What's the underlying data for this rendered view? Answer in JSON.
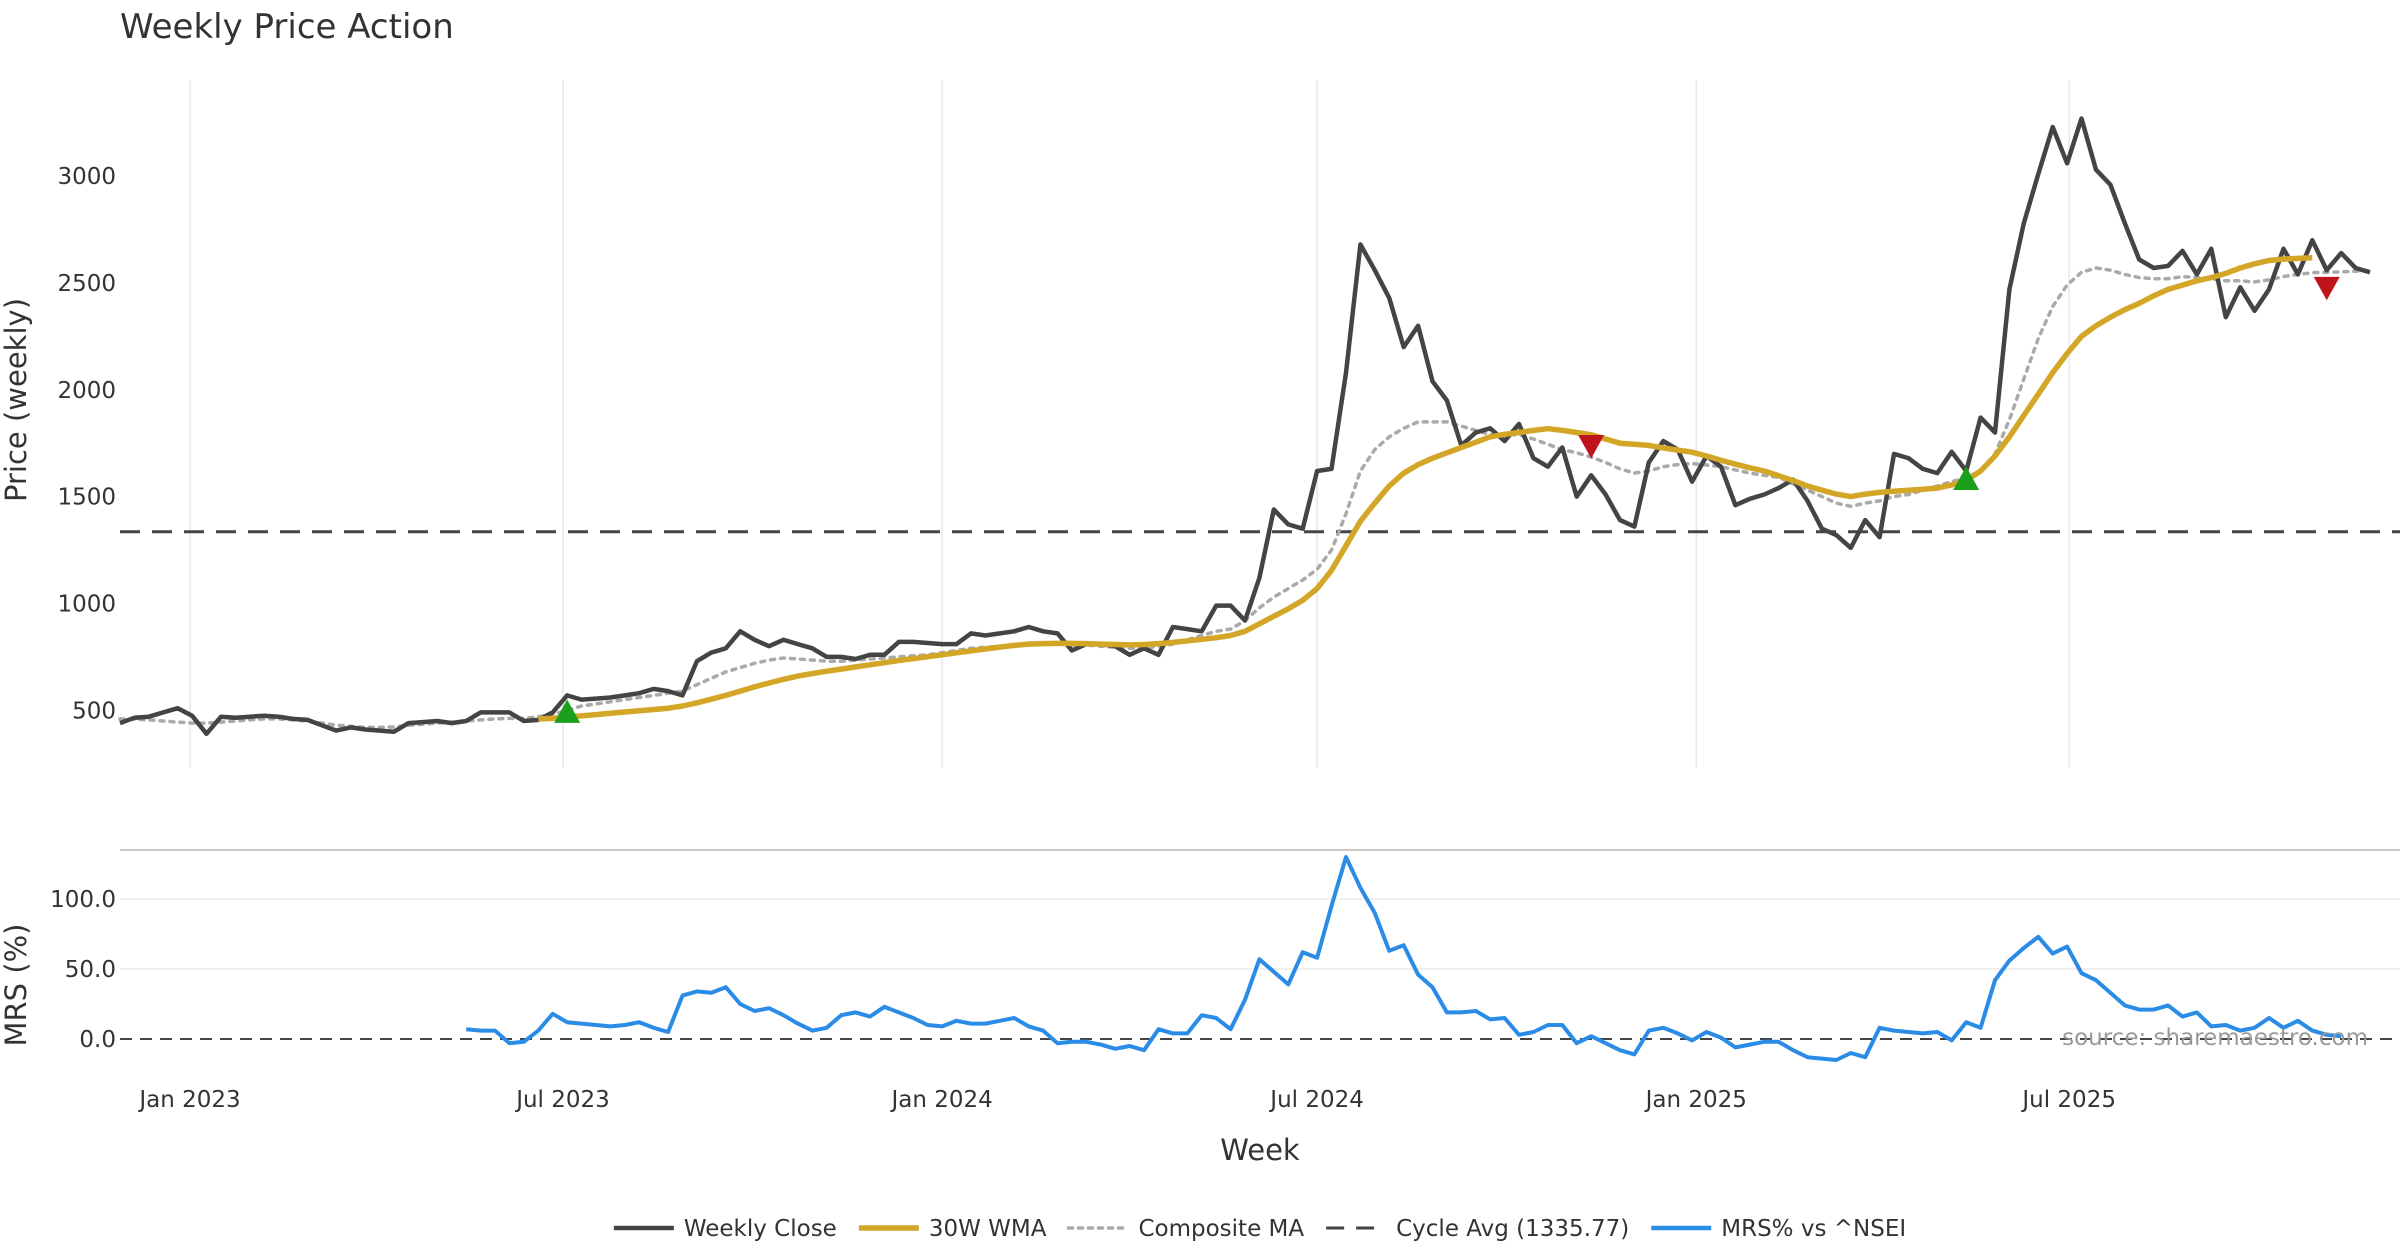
{
  "title": "Weekly Price Action",
  "source": "source: sharemaestro.com",
  "colors": {
    "close": "#444444",
    "wma": "#d4a628",
    "composite": "#aaaaaa",
    "cycle": "#444444",
    "mrs": "#2a8ce6",
    "buy": "#1ca01c",
    "sell": "#c0141c"
  },
  "chart_data": [
    {
      "type": "line",
      "panel": "price",
      "title": "Weekly Price Action",
      "xlabel": "",
      "ylabel": "Price (weekly)",
      "ylim": [
        230,
        3450
      ],
      "yticks": [
        500,
        1000,
        1500,
        2000,
        2500,
        3000
      ],
      "x_start": "2022-11-28",
      "x_step_days": 7,
      "grid": "vertical",
      "series": [
        {
          "name": "Weekly Close",
          "values": [
            440,
            465,
            470,
            490,
            510,
            475,
            390,
            470,
            465,
            470,
            475,
            470,
            460,
            455,
            430,
            405,
            420,
            410,
            405,
            400,
            440,
            445,
            450,
            440,
            450,
            490,
            490,
            490,
            450,
            455,
            490,
            570,
            550,
            555,
            560,
            570,
            580,
            600,
            590,
            570,
            730,
            770,
            790,
            870,
            830,
            800,
            830,
            810,
            790,
            750,
            750,
            740,
            760,
            760,
            820,
            820,
            815,
            810,
            810,
            860,
            850,
            860,
            870,
            890,
            870,
            860,
            780,
            810,
            810,
            800,
            760,
            790,
            760,
            890,
            880,
            870,
            990,
            990,
            920,
            1120,
            1440,
            1370,
            1350,
            1620,
            1630,
            2080,
            2680,
            2560,
            2430,
            2200,
            2300,
            2040,
            1950,
            1740,
            1800,
            1820,
            1760,
            1840,
            1680,
            1640,
            1730,
            1500,
            1600,
            1510,
            1390,
            1360,
            1660,
            1760,
            1720,
            1570,
            1690,
            1640,
            1460,
            1490,
            1510,
            1540,
            1580,
            1480,
            1350,
            1320,
            1260,
            1390,
            1310,
            1700,
            1680,
            1630,
            1610,
            1710,
            1620,
            1870,
            1800,
            2470,
            2780,
            3010,
            3230,
            3060,
            3270,
            3030,
            2960,
            2780,
            2610,
            2570,
            2580,
            2650,
            2540,
            2660,
            2340,
            2480,
            2370,
            2470,
            2660,
            2540,
            2700,
            2560,
            2640,
            2570,
            2550
          ]
        },
        {
          "name": "30W WMA",
          "start_index": 29,
          "values": [
            460,
            462,
            468,
            474,
            480,
            486,
            492,
            498,
            504,
            510,
            520,
            535,
            552,
            570,
            590,
            610,
            628,
            645,
            660,
            672,
            683,
            693,
            703,
            713,
            723,
            733,
            742,
            751,
            760,
            769,
            778,
            787,
            796,
            804,
            810,
            812,
            813,
            813,
            812,
            810,
            808,
            806,
            808,
            812,
            818,
            825,
            832,
            840,
            850,
            870,
            905,
            940,
            975,
            1015,
            1070,
            1155,
            1270,
            1385,
            1470,
            1550,
            1610,
            1650,
            1680,
            1705,
            1730,
            1755,
            1780,
            1792,
            1800,
            1810,
            1818,
            1810,
            1800,
            1790,
            1770,
            1750,
            1745,
            1740,
            1728,
            1718,
            1708,
            1690,
            1670,
            1652,
            1635,
            1620,
            1598,
            1575,
            1550,
            1530,
            1512,
            1500,
            1512,
            1520,
            1525,
            1530,
            1535,
            1540,
            1555,
            1575,
            1620,
            1690,
            1780,
            1880,
            1980,
            2080,
            2170,
            2250,
            2300,
            2340,
            2375,
            2405,
            2440,
            2470,
            2490,
            2510,
            2525,
            2545,
            2570,
            2590,
            2605,
            2612,
            2615,
            2618
          ]
        },
        {
          "name": "Composite MA",
          "values": [
            460,
            458,
            455,
            450,
            445,
            440,
            440,
            445,
            450,
            455,
            460,
            460,
            455,
            450,
            440,
            430,
            425,
            420,
            420,
            422,
            430,
            435,
            440,
            445,
            450,
            455,
            460,
            462,
            462,
            470,
            480,
            500,
            520,
            530,
            540,
            550,
            560,
            570,
            580,
            590,
            620,
            650,
            680,
            700,
            720,
            735,
            745,
            740,
            735,
            730,
            730,
            735,
            740,
            745,
            750,
            755,
            760,
            770,
            780,
            790,
            795,
            800,
            805,
            810,
            812,
            810,
            805,
            805,
            800,
            795,
            790,
            790,
            800,
            810,
            830,
            850,
            870,
            880,
            920,
            980,
            1030,
            1070,
            1110,
            1160,
            1250,
            1420,
            1620,
            1720,
            1780,
            1820,
            1850,
            1850,
            1850,
            1830,
            1810,
            1790,
            1790,
            1790,
            1770,
            1745,
            1720,
            1705,
            1685,
            1660,
            1630,
            1610,
            1620,
            1640,
            1650,
            1655,
            1648,
            1640,
            1625,
            1610,
            1600,
            1590,
            1560,
            1530,
            1500,
            1470,
            1455,
            1470,
            1480,
            1500,
            1510,
            1530,
            1550,
            1570,
            1590,
            1620,
            1700,
            1860,
            2050,
            2240,
            2390,
            2490,
            2550,
            2570,
            2560,
            2540,
            2525,
            2520,
            2520,
            2530,
            2525,
            2520,
            2510,
            2510,
            2505,
            2515,
            2530,
            2540,
            2548,
            2550,
            2552,
            2555,
            2558
          ]
        },
        {
          "name": "Cycle Avg (1335.77)",
          "constant": 1335.77
        }
      ],
      "markers": [
        {
          "type": "buy",
          "index": 31,
          "value": 490
        },
        {
          "type": "sell",
          "index": 102,
          "value": 1740
        },
        {
          "type": "buy",
          "index": 128,
          "value": 1580
        },
        {
          "type": "sell",
          "index": 153,
          "value": 2480
        }
      ]
    },
    {
      "type": "line",
      "panel": "mrs",
      "xlabel": "Week",
      "ylabel": "MRS (%)",
      "ylim": [
        -15,
        135
      ],
      "yticks": [
        "0.0",
        "50.0",
        "100.0"
      ],
      "ytick_values": [
        0,
        50,
        100
      ],
      "xticks": [
        "Jan 2023",
        "Jul 2023",
        "Jan 2024",
        "Jul 2024",
        "Jan 2025",
        "Jul 2025"
      ],
      "xtick_dates": [
        "2023-01-01",
        "2023-07-01",
        "2024-01-01",
        "2024-07-01",
        "2025-01-01",
        "2025-07-01"
      ],
      "reference_line": 0,
      "series": [
        {
          "name": "MRS% vs ^NSEI",
          "start_index": 24,
          "values": [
            7,
            6,
            6,
            -3,
            -2,
            6,
            18,
            12,
            11,
            10,
            9,
            10,
            12,
            8,
            5,
            31,
            34,
            33,
            37,
            25,
            20,
            22,
            17,
            11,
            6,
            8,
            17,
            19,
            16,
            23,
            19,
            15,
            10,
            9,
            13,
            11,
            11,
            13,
            15,
            9,
            6,
            -3,
            -2,
            -2,
            -4,
            -7,
            -5,
            -8,
            7,
            4,
            4,
            17,
            15,
            7,
            28,
            57,
            48,
            39,
            62,
            58,
            95,
            130,
            108,
            90,
            63,
            67,
            46,
            37,
            19,
            19,
            20,
            14,
            15,
            3,
            5,
            10,
            10,
            -3,
            2,
            -3,
            -8,
            -11,
            6,
            8,
            4,
            -1,
            5,
            1,
            -6,
            -4,
            -2,
            -2,
            -8,
            -13,
            -14,
            -15,
            -10,
            -13,
            8,
            6,
            5,
            4,
            5,
            -1,
            12,
            8,
            42,
            56,
            65,
            73,
            61,
            66,
            47,
            42,
            33,
            24,
            21,
            21,
            24,
            16,
            19,
            9,
            10,
            6,
            8,
            15,
            8,
            13,
            6,
            3,
            2
          ]
        }
      ]
    }
  ],
  "legend": [
    {
      "label": "Weekly Close",
      "style": "solid",
      "color": "#444444"
    },
    {
      "label": "30W WMA",
      "style": "solid-thick",
      "color": "#d4a628"
    },
    {
      "label": "Composite MA",
      "style": "dotted",
      "color": "#aaaaaa"
    },
    {
      "label": "Cycle Avg (1335.77)",
      "style": "dashed",
      "color": "#444444"
    },
    {
      "label": "MRS% vs ^NSEI",
      "style": "solid",
      "color": "#2a8ce6"
    }
  ]
}
